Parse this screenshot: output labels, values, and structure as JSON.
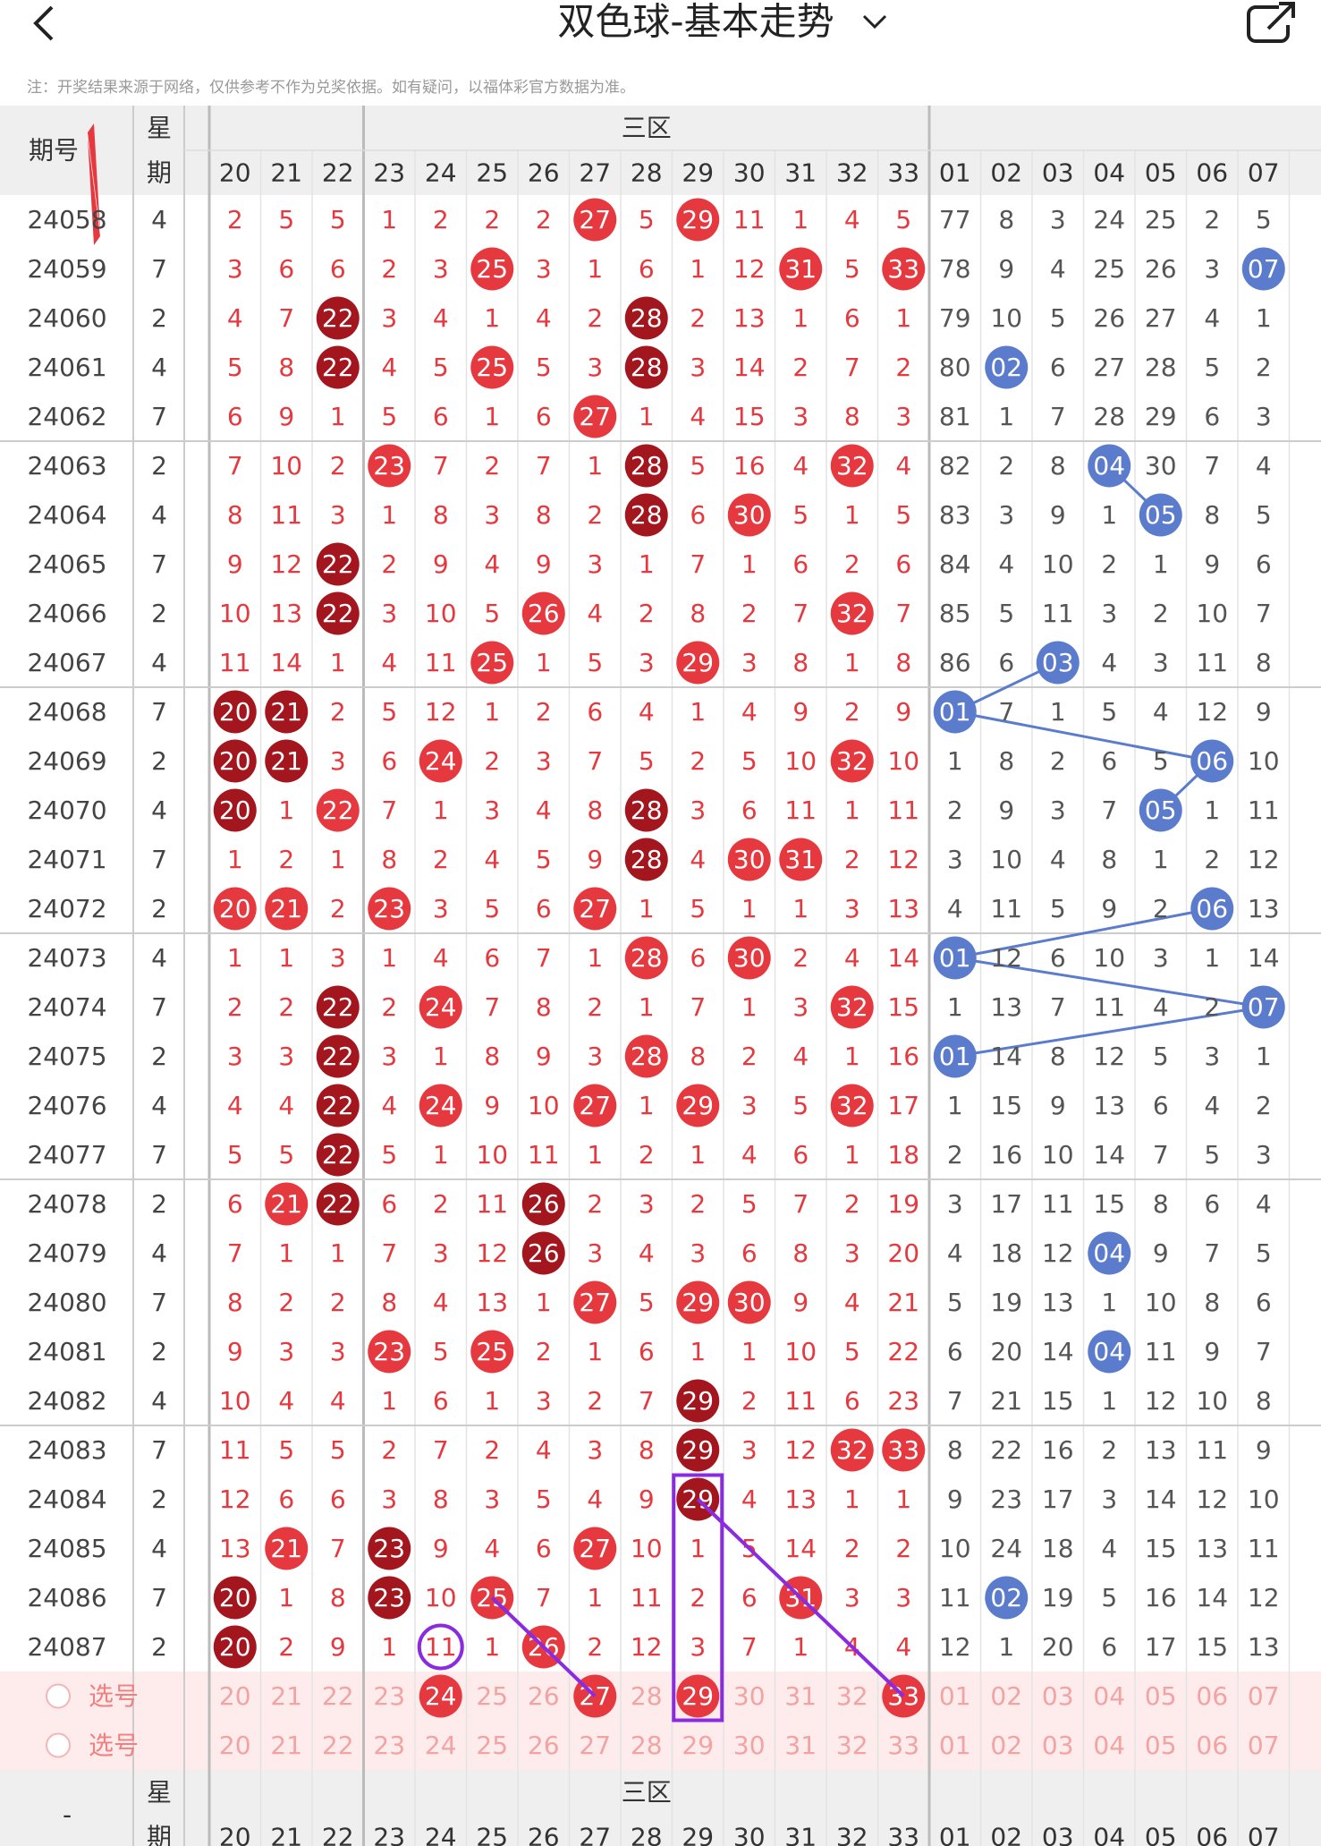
{
  "header": {
    "title": "双色球-基本走势",
    "note": "注：开奖结果来源于网络，仅供参考不作为兑奖依据。如有疑问，以福体彩官方数据为准。"
  },
  "table": {
    "issue_label": "期号",
    "week_top": "星",
    "week_bottom": "期",
    "zone_label": "三区",
    "pick_label": "选号",
    "footer_issue": "-",
    "columns": [
      "20",
      "21",
      "22",
      "23",
      "24",
      "25",
      "26",
      "27",
      "28",
      "29",
      "30",
      "31",
      "32",
      "33",
      "01",
      "02",
      "03",
      "04",
      "05",
      "06",
      "07"
    ],
    "rows": [
      {
        "issue": "24058",
        "week": "4",
        "cells": [
          "2",
          "5",
          "5",
          "1",
          "2",
          "2",
          "2",
          "27",
          "5",
          "29",
          "11",
          "1",
          "4",
          "5",
          "77",
          "8",
          "3",
          "24",
          "25",
          "2",
          "5"
        ]
      },
      {
        "issue": "24059",
        "week": "7",
        "cells": [
          "3",
          "6",
          "6",
          "2",
          "3",
          "25",
          "3",
          "1",
          "6",
          "1",
          "12",
          "31",
          "5",
          "33",
          "78",
          "9",
          "4",
          "25",
          "26",
          "3",
          "07"
        ]
      },
      {
        "issue": "24060",
        "week": "2",
        "cells": [
          "4",
          "7",
          "22",
          "3",
          "4",
          "1",
          "4",
          "2",
          "28",
          "2",
          "13",
          "1",
          "6",
          "1",
          "79",
          "10",
          "5",
          "26",
          "27",
          "4",
          "1"
        ]
      },
      {
        "issue": "24061",
        "week": "4",
        "cells": [
          "5",
          "8",
          "22",
          "4",
          "5",
          "25",
          "5",
          "3",
          "28",
          "3",
          "14",
          "2",
          "7",
          "2",
          "80",
          "02",
          "6",
          "27",
          "28",
          "5",
          "2"
        ]
      },
      {
        "issue": "24062",
        "week": "7",
        "cells": [
          "6",
          "9",
          "1",
          "5",
          "6",
          "1",
          "6",
          "27",
          "1",
          "4",
          "15",
          "3",
          "8",
          "3",
          "81",
          "1",
          "7",
          "28",
          "29",
          "6",
          "3"
        ]
      },
      {
        "issue": "24063",
        "week": "2",
        "cells": [
          "7",
          "10",
          "2",
          "23",
          "7",
          "2",
          "7",
          "1",
          "28",
          "5",
          "16",
          "4",
          "32",
          "4",
          "82",
          "2",
          "8",
          "04",
          "30",
          "7",
          "4"
        ]
      },
      {
        "issue": "24064",
        "week": "4",
        "cells": [
          "8",
          "11",
          "3",
          "1",
          "8",
          "3",
          "8",
          "2",
          "28",
          "6",
          "30",
          "5",
          "1",
          "5",
          "83",
          "3",
          "9",
          "1",
          "05",
          "8",
          "5"
        ]
      },
      {
        "issue": "24065",
        "week": "7",
        "cells": [
          "9",
          "12",
          "22",
          "2",
          "9",
          "4",
          "9",
          "3",
          "1",
          "7",
          "1",
          "6",
          "2",
          "6",
          "84",
          "4",
          "10",
          "2",
          "1",
          "9",
          "6"
        ]
      },
      {
        "issue": "24066",
        "week": "2",
        "cells": [
          "10",
          "13",
          "22",
          "3",
          "10",
          "5",
          "26",
          "4",
          "2",
          "8",
          "2",
          "7",
          "32",
          "7",
          "85",
          "5",
          "11",
          "3",
          "2",
          "10",
          "7"
        ]
      },
      {
        "issue": "24067",
        "week": "4",
        "cells": [
          "11",
          "14",
          "1",
          "4",
          "11",
          "25",
          "1",
          "5",
          "3",
          "29",
          "3",
          "8",
          "1",
          "8",
          "86",
          "6",
          "03",
          "4",
          "3",
          "11",
          "8"
        ]
      },
      {
        "issue": "24068",
        "week": "7",
        "cells": [
          "20",
          "21",
          "2",
          "5",
          "12",
          "1",
          "2",
          "6",
          "4",
          "1",
          "4",
          "9",
          "2",
          "9",
          "01",
          "7",
          "1",
          "5",
          "4",
          "12",
          "9"
        ]
      },
      {
        "issue": "24069",
        "week": "2",
        "cells": [
          "20",
          "21",
          "3",
          "6",
          "24",
          "2",
          "3",
          "7",
          "5",
          "2",
          "5",
          "10",
          "32",
          "10",
          "1",
          "8",
          "2",
          "6",
          "5",
          "06",
          "10"
        ]
      },
      {
        "issue": "24070",
        "week": "4",
        "cells": [
          "20",
          "1",
          "22",
          "7",
          "1",
          "3",
          "4",
          "8",
          "28",
          "3",
          "6",
          "11",
          "1",
          "11",
          "2",
          "9",
          "3",
          "7",
          "05",
          "1",
          "11"
        ]
      },
      {
        "issue": "24071",
        "week": "7",
        "cells": [
          "1",
          "2",
          "1",
          "8",
          "2",
          "4",
          "5",
          "9",
          "28",
          "4",
          "30",
          "31",
          "2",
          "12",
          "3",
          "10",
          "4",
          "8",
          "1",
          "2",
          "12"
        ]
      },
      {
        "issue": "24072",
        "week": "2",
        "cells": [
          "20",
          "21",
          "2",
          "23",
          "3",
          "5",
          "6",
          "27",
          "1",
          "5",
          "1",
          "1",
          "3",
          "13",
          "4",
          "11",
          "5",
          "9",
          "2",
          "06",
          "13"
        ]
      },
      {
        "issue": "24073",
        "week": "4",
        "cells": [
          "1",
          "1",
          "3",
          "1",
          "4",
          "6",
          "7",
          "1",
          "28",
          "6",
          "30",
          "2",
          "4",
          "14",
          "01",
          "12",
          "6",
          "10",
          "3",
          "1",
          "14"
        ]
      },
      {
        "issue": "24074",
        "week": "7",
        "cells": [
          "2",
          "2",
          "22",
          "2",
          "24",
          "7",
          "8",
          "2",
          "1",
          "7",
          "1",
          "3",
          "32",
          "15",
          "1",
          "13",
          "7",
          "11",
          "4",
          "2",
          "07"
        ]
      },
      {
        "issue": "24075",
        "week": "2",
        "cells": [
          "3",
          "3",
          "22",
          "3",
          "1",
          "8",
          "9",
          "3",
          "28",
          "8",
          "2",
          "4",
          "1",
          "16",
          "01",
          "14",
          "8",
          "12",
          "5",
          "3",
          "1"
        ]
      },
      {
        "issue": "24076",
        "week": "4",
        "cells": [
          "4",
          "4",
          "22",
          "4",
          "24",
          "9",
          "10",
          "27",
          "1",
          "29",
          "3",
          "5",
          "32",
          "17",
          "1",
          "15",
          "9",
          "13",
          "6",
          "4",
          "2"
        ]
      },
      {
        "issue": "24077",
        "week": "7",
        "cells": [
          "5",
          "5",
          "22",
          "5",
          "1",
          "10",
          "11",
          "1",
          "2",
          "1",
          "4",
          "6",
          "1",
          "18",
          "2",
          "16",
          "10",
          "14",
          "7",
          "5",
          "3"
        ]
      },
      {
        "issue": "24078",
        "week": "2",
        "cells": [
          "6",
          "21",
          "22",
          "6",
          "2",
          "11",
          "26",
          "2",
          "3",
          "2",
          "5",
          "7",
          "2",
          "19",
          "3",
          "17",
          "11",
          "15",
          "8",
          "6",
          "4"
        ]
      },
      {
        "issue": "24079",
        "week": "4",
        "cells": [
          "7",
          "1",
          "1",
          "7",
          "3",
          "12",
          "26",
          "3",
          "4",
          "3",
          "6",
          "8",
          "3",
          "20",
          "4",
          "18",
          "12",
          "04",
          "9",
          "7",
          "5"
        ]
      },
      {
        "issue": "24080",
        "week": "7",
        "cells": [
          "8",
          "2",
          "2",
          "8",
          "4",
          "13",
          "1",
          "27",
          "5",
          "29",
          "30",
          "9",
          "4",
          "21",
          "5",
          "19",
          "13",
          "1",
          "10",
          "8",
          "6"
        ]
      },
      {
        "issue": "24081",
        "week": "2",
        "cells": [
          "9",
          "3",
          "3",
          "23",
          "5",
          "25",
          "2",
          "1",
          "6",
          "1",
          "1",
          "10",
          "5",
          "22",
          "6",
          "20",
          "14",
          "04",
          "11",
          "9",
          "7"
        ]
      },
      {
        "issue": "24082",
        "week": "4",
        "cells": [
          "10",
          "4",
          "4",
          "1",
          "6",
          "1",
          "3",
          "2",
          "7",
          "29",
          "2",
          "11",
          "6",
          "23",
          "7",
          "21",
          "15",
          "1",
          "12",
          "10",
          "8"
        ]
      },
      {
        "issue": "24083",
        "week": "7",
        "cells": [
          "11",
          "5",
          "5",
          "2",
          "7",
          "2",
          "4",
          "3",
          "8",
          "29",
          "3",
          "12",
          "32",
          "33",
          "8",
          "22",
          "16",
          "2",
          "13",
          "11",
          "9"
        ]
      },
      {
        "issue": "24084",
        "week": "2",
        "cells": [
          "12",
          "6",
          "6",
          "3",
          "8",
          "3",
          "5",
          "4",
          "9",
          "29",
          "4",
          "13",
          "1",
          "1",
          "9",
          "23",
          "17",
          "3",
          "14",
          "12",
          "10"
        ]
      },
      {
        "issue": "24085",
        "week": "4",
        "cells": [
          "13",
          "21",
          "7",
          "23",
          "9",
          "4",
          "6",
          "27",
          "10",
          "1",
          "5",
          "14",
          "2",
          "2",
          "10",
          "24",
          "18",
          "4",
          "15",
          "13",
          "11"
        ]
      },
      {
        "issue": "24086",
        "week": "7",
        "cells": [
          "20",
          "1",
          "8",
          "23",
          "10",
          "25",
          "7",
          "1",
          "11",
          "2",
          "6",
          "31",
          "3",
          "3",
          "11",
          "02",
          "19",
          "5",
          "16",
          "14",
          "12"
        ]
      },
      {
        "issue": "24087",
        "week": "2",
        "cells": [
          "20",
          "2",
          "9",
          "1",
          "11",
          "1",
          "26",
          "2",
          "12",
          "3",
          "7",
          "1",
          "4",
          "4",
          "12",
          "1",
          "20",
          "6",
          "17",
          "15",
          "13"
        ]
      }
    ],
    "picks": [
      {
        "selected": [
          "24",
          "27",
          "29",
          "33"
        ]
      },
      {
        "selected": []
      }
    ]
  }
}
